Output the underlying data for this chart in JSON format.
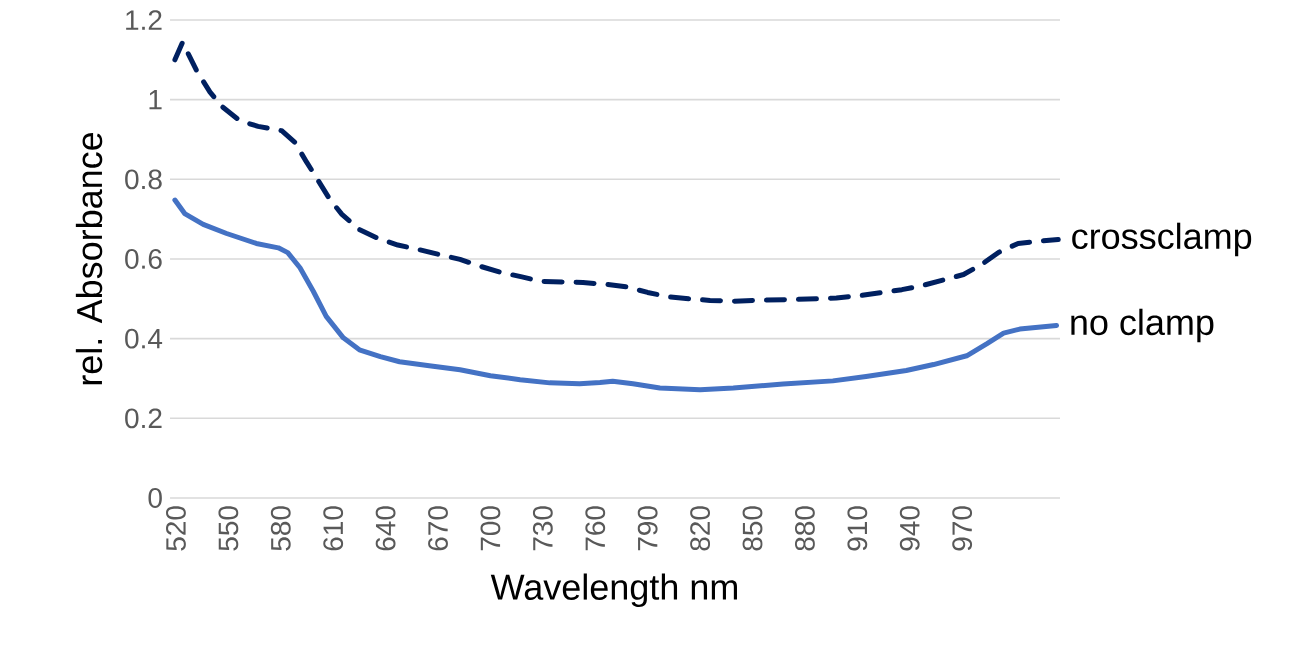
{
  "chart_data": {
    "type": "line",
    "xlabel": "Wavelength nm",
    "ylabel": "rel. Absorbance",
    "xlim": [
      516.6,
      1026
    ],
    "xticks": [
      520,
      550,
      580,
      610,
      640,
      670,
      700,
      730,
      760,
      790,
      820,
      850,
      880,
      910,
      940,
      970
    ],
    "ylim": [
      0,
      1.2
    ],
    "yticks": [
      0,
      0.2,
      0.4,
      0.6,
      0.8,
      1,
      1.2
    ],
    "grid": "y",
    "series": [
      {
        "name": "crossclamp",
        "color": "#002060",
        "line_style": "dashed",
        "x": [
          519.4,
          523.8,
          531.8,
          539.5,
          546,
          556.6,
          567,
          580.5,
          588,
          594.8,
          601,
          608,
          615,
          625,
          635,
          647,
          658.6,
          671,
          682.6,
          694,
          705.5,
          718,
          729,
          753,
          767,
          778,
          790,
          801.7,
          814,
          825.7,
          839,
          850,
          869.6,
          886.8,
          898,
          911.6,
          923,
          935.5,
          947,
          959,
          970.8,
          981,
          991,
          1002,
          1014.6,
          1025
        ],
        "values": [
          1.1,
          1.144,
          1.073,
          1.019,
          0.984,
          0.947,
          0.933,
          0.922,
          0.893,
          0.843,
          0.8,
          0.75,
          0.712,
          0.674,
          0.653,
          0.635,
          0.624,
          0.611,
          0.599,
          0.582,
          0.567,
          0.555,
          0.544,
          0.541,
          0.536,
          0.53,
          0.516,
          0.505,
          0.5,
          0.496,
          0.494,
          0.496,
          0.498,
          0.5,
          0.502,
          0.508,
          0.515,
          0.523,
          0.533,
          0.547,
          0.561,
          0.586,
          0.617,
          0.639,
          0.645,
          0.649
        ]
      },
      {
        "name": "no clamp",
        "color": "#4472c4",
        "line_style": "solid",
        "x": [
          519.4,
          525,
          535.6,
          549,
          566,
          578.6,
          584,
          591,
          598.6,
          606,
          615.8,
          625,
          637,
          648,
          665,
          682.6,
          700,
          717,
          734,
          751,
          762.7,
          770,
          781.6,
          797,
          820,
          839,
          867.5,
          896,
          915,
          938,
          953.6,
          972.6,
          984,
          993.7,
          1003,
          1024
        ],
        "values": [
          0.748,
          0.714,
          0.687,
          0.664,
          0.639,
          0.628,
          0.616,
          0.578,
          0.519,
          0.456,
          0.402,
          0.372,
          0.355,
          0.342,
          0.332,
          0.322,
          0.307,
          0.297,
          0.289,
          0.287,
          0.29,
          0.293,
          0.287,
          0.276,
          0.272,
          0.276,
          0.286,
          0.294,
          0.305,
          0.32,
          0.335,
          0.357,
          0.387,
          0.414,
          0.424,
          0.433
        ]
      }
    ]
  }
}
